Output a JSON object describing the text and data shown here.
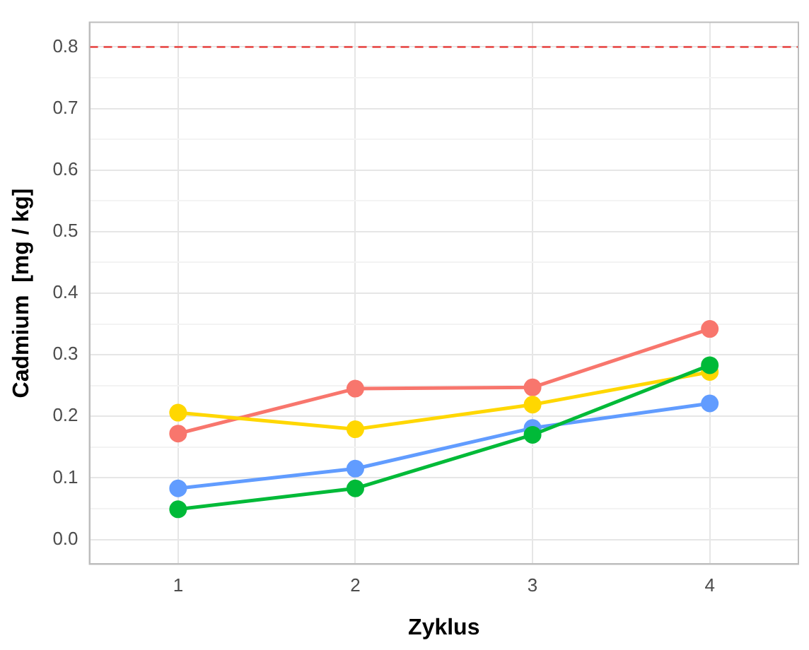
{
  "chart_data": {
    "type": "line",
    "xlabel": "Zyklus",
    "ylabel": "Cadmium  [mg / kg]",
    "categories": [
      "1",
      "2",
      "3",
      "4"
    ],
    "series": [
      {
        "color": "#f8766d",
        "values": [
          0.172,
          0.245,
          0.247,
          0.342
        ]
      },
      {
        "color": "#ffd700",
        "values": [
          0.206,
          0.179,
          0.219,
          0.272
        ]
      },
      {
        "color": "#619cff",
        "values": [
          0.083,
          0.115,
          0.181,
          0.221
        ]
      },
      {
        "color": "#00ba38",
        "values": [
          0.049,
          0.083,
          0.17,
          0.283
        ]
      }
    ],
    "ylim": [
      -0.04,
      0.84
    ],
    "yticks": [
      {
        "value": 0,
        "label": "0.0"
      },
      {
        "value": 0.05,
        "label": null
      },
      0.1,
      {
        "value": 0.15,
        "label": null
      },
      0.2,
      {
        "value": 0.25,
        "label": null
      },
      0.3,
      {
        "value": 0.35,
        "label": null
      },
      0.4,
      {
        "value": 0.45,
        "label": null
      },
      0.5,
      {
        "value": 0.55,
        "label": null
      },
      0.6,
      {
        "value": 0.65,
        "label": null
      },
      0.7,
      {
        "value": 0.75,
        "label": null
      },
      0.8
    ],
    "ref_lines": [
      {
        "axis": "y",
        "value": 0.8,
        "color": "#e8423f",
        "line_style": "dashed"
      }
    ],
    "grid": true,
    "legend": false,
    "marker": "circle",
    "line_style": "solid"
  }
}
